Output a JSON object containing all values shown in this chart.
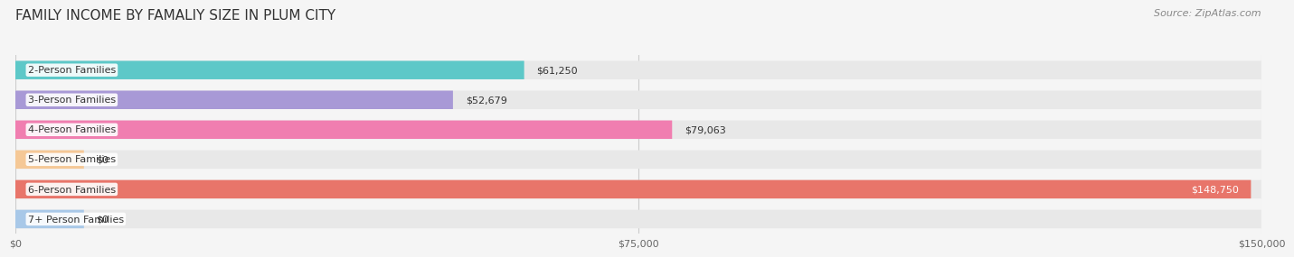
{
  "title": "FAMILY INCOME BY FAMALIY SIZE IN PLUM CITY",
  "source": "Source: ZipAtlas.com",
  "categories": [
    "2-Person Families",
    "3-Person Families",
    "4-Person Families",
    "5-Person Families",
    "6-Person Families",
    "7+ Person Families"
  ],
  "values": [
    61250,
    52679,
    79063,
    0,
    148750,
    0
  ],
  "bar_colors": [
    "#5DC8C8",
    "#A899D6",
    "#F07EB0",
    "#F5C896",
    "#E8756A",
    "#A8C8E8"
  ],
  "label_colors": [
    "#333333",
    "#333333",
    "#333333",
    "#333333",
    "#ffffff",
    "#333333"
  ],
  "value_labels": [
    "$61,250",
    "$52,679",
    "$79,063",
    "$0",
    "$148,750",
    "$0"
  ],
  "xmax": 150000,
  "xticks": [
    0,
    75000,
    150000
  ],
  "xticklabels": [
    "$0",
    "$75,000",
    "$150,000"
  ],
  "bg_color": "#f5f5f5",
  "bar_bg_color": "#e8e8e8",
  "title_fontsize": 11,
  "source_fontsize": 8,
  "bar_label_fontsize": 8,
  "value_fontsize": 8
}
